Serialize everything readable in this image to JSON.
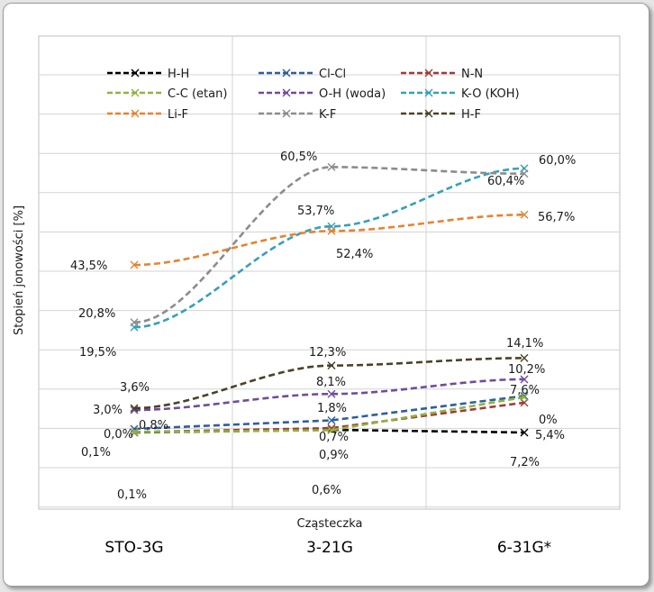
{
  "chart_data": {
    "type": "line",
    "xlabel": "Cząsteczka",
    "ylabel": "Stopień jonowości [%]",
    "categories": [
      "STO-3G",
      "3-21G",
      "6-31G*"
    ],
    "grid": true,
    "legend": "top",
    "series": [
      {
        "name": "H-H",
        "color": "#000000",
        "values": [
          0.0,
          0.7,
          0.0
        ],
        "labels": [
          "0,0%",
          "0,7%",
          "0%"
        ]
      },
      {
        "name": "Cl-Cl",
        "color": "#2f5e9c",
        "values": [
          0.8,
          1.8,
          7.6
        ],
        "labels": [
          "0,8%",
          "1,8%",
          "7,6%"
        ]
      },
      {
        "name": "N-N",
        "color": "#a33a3a",
        "values": [
          0.1,
          0.9,
          5.4
        ],
        "labels": [
          "0,1%",
          "0,9%",
          "5,4%"
        ]
      },
      {
        "name": "C-C (etan)",
        "color": "#8fb33f",
        "values": [
          0.1,
          0.6,
          7.2
        ],
        "labels": [
          "0,1%",
          "0,6%",
          "7,2%"
        ]
      },
      {
        "name": "O-H (woda)",
        "color": "#6f4c9b",
        "values": [
          3.0,
          8.1,
          10.2
        ],
        "labels": [
          "3,0%",
          "8,1%",
          "10,2%"
        ]
      },
      {
        "name": "K-O (KOH)",
        "color": "#35a0b8",
        "values": [
          19.5,
          53.7,
          60.4
        ],
        "labels": [
          "19,5%",
          "53,7%",
          "60,4%"
        ]
      },
      {
        "name": "Li-F",
        "color": "#e8822e",
        "values": [
          43.5,
          52.4,
          56.7
        ],
        "labels": [
          "43,5%",
          "52,4%",
          "56,7%"
        ]
      },
      {
        "name": "K-F",
        "color": "#8c8c8c",
        "values": [
          20.8,
          60.5,
          60.0
        ],
        "labels": [
          "20,8%",
          "60,5%",
          "60,0%"
        ]
      },
      {
        "name": "H-F",
        "color": "#4a4226",
        "values": [
          3.6,
          12.3,
          14.1
        ],
        "labels": [
          "3,6%",
          "12,3%",
          "14,1%"
        ]
      }
    ]
  }
}
